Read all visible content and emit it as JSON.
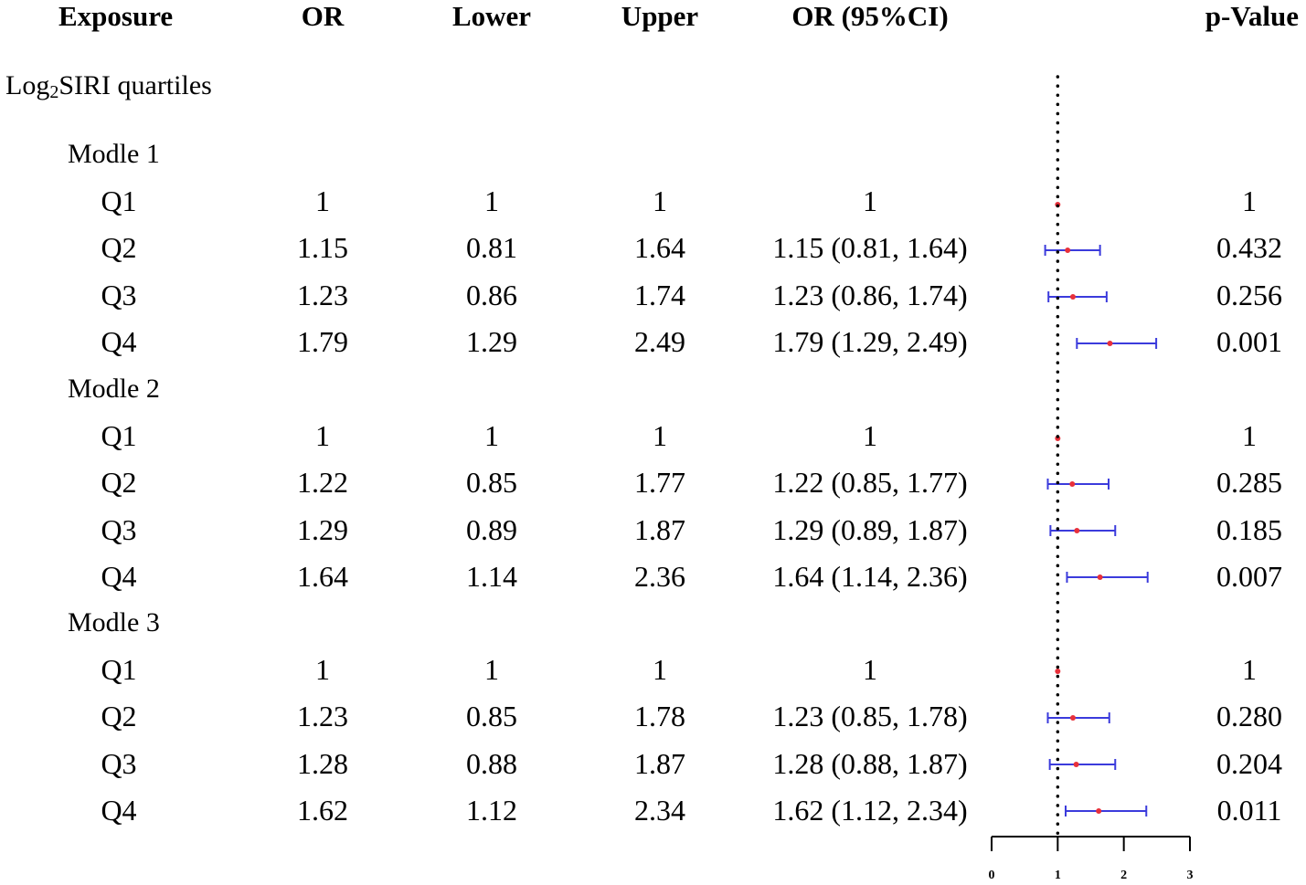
{
  "headers": {
    "exposure": "Exposure",
    "or": "OR",
    "lower": "Lower",
    "upper": "Upper",
    "ci": "OR (95%CI)",
    "pvalue": "p-Value"
  },
  "section": {
    "prefix": "Log",
    "sub": "2",
    "rest": "SIRI quartiles"
  },
  "groups": [
    {
      "label": "Modle 1",
      "rows": [
        {
          "q": "Q1",
          "or": "1",
          "lower": "1",
          "upper": "1",
          "ci": "1",
          "p": "1"
        },
        {
          "q": "Q2",
          "or": "1.15",
          "lower": "0.81",
          "upper": "1.64",
          "ci": "1.15 (0.81, 1.64)",
          "p": "0.432"
        },
        {
          "q": "Q3",
          "or": "1.23",
          "lower": "0.86",
          "upper": "1.74",
          "ci": "1.23 (0.86, 1.74)",
          "p": "0.256"
        },
        {
          "q": "Q4",
          "or": "1.79",
          "lower": "1.29",
          "upper": "2.49",
          "ci": "1.79 (1.29, 2.49)",
          "p": "0.001"
        }
      ]
    },
    {
      "label": "Modle 2",
      "rows": [
        {
          "q": "Q1",
          "or": "1",
          "lower": "1",
          "upper": "1",
          "ci": "1",
          "p": "1"
        },
        {
          "q": "Q2",
          "or": "1.22",
          "lower": "0.85",
          "upper": "1.77",
          "ci": "1.22 (0.85, 1.77)",
          "p": "0.285"
        },
        {
          "q": "Q3",
          "or": "1.29",
          "lower": "0.89",
          "upper": "1.87",
          "ci": "1.29 (0.89, 1.87)",
          "p": "0.185"
        },
        {
          "q": "Q4",
          "or": "1.64",
          "lower": "1.14",
          "upper": "2.36",
          "ci": "1.64 (1.14, 2.36)",
          "p": "0.007"
        }
      ]
    },
    {
      "label": "Modle 3",
      "rows": [
        {
          "q": "Q1",
          "or": "1",
          "lower": "1",
          "upper": "1",
          "ci": "1",
          "p": "1"
        },
        {
          "q": "Q2",
          "or": "1.23",
          "lower": "0.85",
          "upper": "1.78",
          "ci": "1.23 (0.85, 1.78)",
          "p": "0.280"
        },
        {
          "q": "Q3",
          "or": "1.28",
          "lower": "0.88",
          "upper": "1.87",
          "ci": "1.28 (0.88, 1.87)",
          "p": "0.204"
        },
        {
          "q": "Q4",
          "or": "1.62",
          "lower": "1.12",
          "upper": "2.34",
          "ci": "1.62 (1.12, 2.34)",
          "p": "0.011"
        }
      ]
    }
  ],
  "colors": {
    "point": "#e8303a",
    "ci_line": "#3b3bdc",
    "reference_line": "#000000",
    "axis": "#000000"
  },
  "chart_data": {
    "type": "forest",
    "xlim": [
      0,
      3
    ],
    "xticks": [
      "0",
      "1",
      "2",
      "3"
    ],
    "reference_value": 1,
    "series": [
      {
        "name": "Modle 1",
        "categories": [
          "Q1",
          "Q2",
          "Q3",
          "Q4"
        ],
        "or": [
          1,
          1.15,
          1.23,
          1.79
        ],
        "lower": [
          1,
          0.81,
          0.86,
          1.29
        ],
        "upper": [
          1,
          1.64,
          1.74,
          2.49
        ]
      },
      {
        "name": "Modle 2",
        "categories": [
          "Q1",
          "Q2",
          "Q3",
          "Q4"
        ],
        "or": [
          1,
          1.22,
          1.29,
          1.64
        ],
        "lower": [
          1,
          0.85,
          0.89,
          1.14
        ],
        "upper": [
          1,
          1.77,
          1.87,
          2.36
        ]
      },
      {
        "name": "Modle 3",
        "categories": [
          "Q1",
          "Q2",
          "Q3",
          "Q4"
        ],
        "or": [
          1,
          1.23,
          1.28,
          1.62
        ],
        "lower": [
          1,
          0.85,
          0.88,
          1.12
        ],
        "upper": [
          1,
          1.78,
          1.87,
          2.34
        ]
      }
    ]
  }
}
